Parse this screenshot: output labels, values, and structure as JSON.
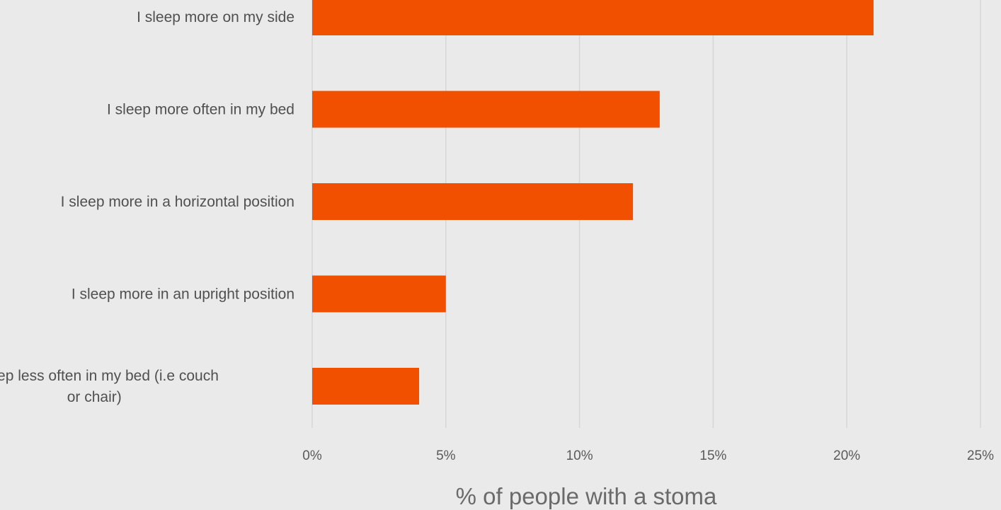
{
  "chart_data": {
    "type": "bar",
    "orientation": "horizontal",
    "categories": [
      [
        "I sleep more on my side"
      ],
      [
        "I sleep more often in my bed"
      ],
      [
        "I sleep more in a horizontal position"
      ],
      [
        "I sleep more in an upright position"
      ],
      [
        "I sleep less often in my bed (i.e couch",
        "or chair)"
      ]
    ],
    "values": [
      21,
      13,
      12,
      5,
      4
    ],
    "xlim": [
      0,
      25
    ],
    "x_ticks": [
      0,
      5,
      10,
      15,
      20,
      25
    ],
    "x_tick_labels": [
      "0%",
      "5%",
      "10%",
      "15%",
      "20%",
      "25%"
    ],
    "xlabel": "% of people with a stoma",
    "grid": "vertical",
    "bar_color": "#f05000",
    "grid_color": "#d6d6d6",
    "background": "#ebeaea"
  }
}
